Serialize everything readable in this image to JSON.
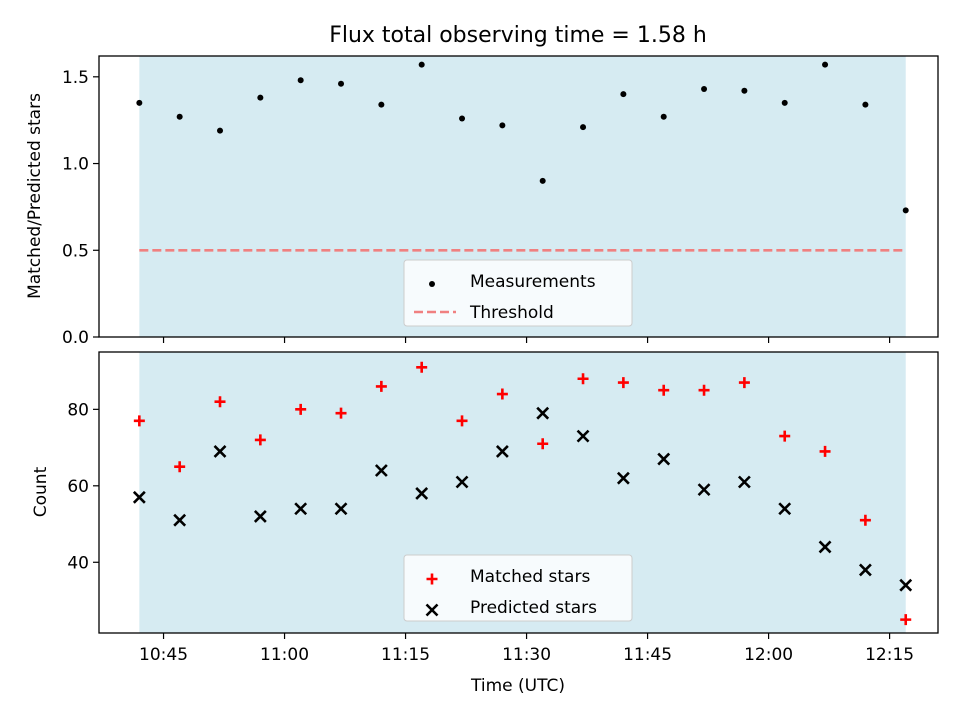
{
  "chart_data": [
    {
      "type": "scatter",
      "title": "Flux total observing time = 1.58 h",
      "ylabel": "Matched/Predicted stars",
      "xlabel": "",
      "x_time_range": [
        "10:37",
        "12:21"
      ],
      "ylim": [
        0,
        1.62
      ],
      "yticks": [
        0.0,
        0.5,
        1.0,
        1.5
      ],
      "ytick_labels": [
        "0.0",
        "0.5",
        "1.0",
        "1.5"
      ],
      "x_tick_labels_shown": false,
      "shaded_span": [
        "10:42",
        "12:17"
      ],
      "shade_color": "#add8e6",
      "legend_location": "lower center",
      "series": [
        {
          "name": "Measurements",
          "marker": "dot",
          "color": "#000000",
          "x": [
            "10:42",
            "10:47",
            "10:52",
            "10:57",
            "11:02",
            "11:07",
            "11:12",
            "11:17",
            "11:22",
            "11:27",
            "11:32",
            "11:37",
            "11:42",
            "11:47",
            "11:52",
            "11:57",
            "12:02",
            "12:07",
            "12:12",
            "12:17"
          ],
          "y": [
            1.35,
            1.27,
            1.19,
            1.38,
            1.48,
            1.46,
            1.34,
            1.57,
            1.26,
            1.22,
            0.9,
            1.21,
            1.4,
            1.27,
            1.43,
            1.42,
            1.35,
            1.57,
            1.34,
            0.73
          ]
        },
        {
          "name": "Threshold",
          "marker": "dashed-line",
          "color": "#f08080",
          "x": [
            "10:42",
            "12:17"
          ],
          "y": [
            0.5,
            0.5
          ]
        }
      ]
    },
    {
      "type": "scatter",
      "title": "",
      "ylabel": "Count",
      "xlabel": "Time (UTC)",
      "x_time_range": [
        "10:37",
        "12:21"
      ],
      "ylim": [
        21.5,
        95
      ],
      "yticks": [
        40,
        60,
        80
      ],
      "ytick_labels": [
        "40",
        "60",
        "80"
      ],
      "xticks": [
        "10:45",
        "11:00",
        "11:15",
        "11:30",
        "11:45",
        "12:00",
        "12:15"
      ],
      "xtick_labels": [
        "10:45",
        "11:00",
        "11:15",
        "11:30",
        "11:45",
        "12:00",
        "12:15"
      ],
      "shaded_span": [
        "10:42",
        "12:17"
      ],
      "shade_color": "#add8e6",
      "legend_location": "lower center",
      "series": [
        {
          "name": "Matched stars",
          "marker": "plus",
          "color": "#ff0000",
          "x": [
            "10:42",
            "10:47",
            "10:52",
            "10:57",
            "11:02",
            "11:07",
            "11:12",
            "11:17",
            "11:22",
            "11:27",
            "11:32",
            "11:37",
            "11:42",
            "11:47",
            "11:52",
            "11:57",
            "12:02",
            "12:07",
            "12:12",
            "12:17"
          ],
          "y": [
            77,
            65,
            82,
            72,
            80,
            79,
            86,
            91,
            77,
            84,
            71,
            88,
            87,
            85,
            85,
            87,
            73,
            69,
            51,
            25
          ]
        },
        {
          "name": "Predicted stars",
          "marker": "x",
          "color": "#000000",
          "x": [
            "10:42",
            "10:47",
            "10:52",
            "10:57",
            "11:02",
            "11:07",
            "11:12",
            "11:17",
            "11:22",
            "11:27",
            "11:32",
            "11:37",
            "11:42",
            "11:47",
            "11:52",
            "11:57",
            "12:02",
            "12:07",
            "12:12",
            "12:17"
          ],
          "y": [
            57,
            51,
            69,
            52,
            54,
            54,
            64,
            58,
            61,
            69,
            79,
            73,
            62,
            67,
            59,
            61,
            54,
            44,
            38,
            34
          ]
        }
      ]
    }
  ]
}
